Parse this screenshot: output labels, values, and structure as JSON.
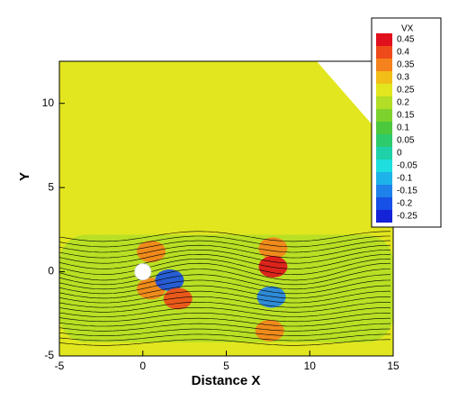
{
  "chart_data": {
    "type": "contour",
    "x_label": "Distance X",
    "y_label": "Y",
    "xlim": [
      -5,
      15
    ],
    "ylim": [
      -5,
      12.5
    ],
    "xticks": [
      -5,
      0,
      5,
      10,
      15
    ],
    "yticks": [
      -5,
      0,
      5,
      10
    ],
    "legend": {
      "title": "VX",
      "levels": [
        0.45,
        0.4,
        0.35,
        0.3,
        0.25,
        0.2,
        0.15,
        0.1,
        0.05,
        0,
        -0.05,
        -0.1,
        -0.15,
        -0.2,
        -0.25
      ],
      "colors": [
        "#e0101c",
        "#ee4a1a",
        "#f5821c",
        "#f2be18",
        "#e2e61e",
        "#b2de26",
        "#7ed22e",
        "#4cc83c",
        "#2ecb6c",
        "#1fd1a8",
        "#1edede",
        "#1eb2ea",
        "#1f82ea",
        "#1650e6",
        "#1422d8"
      ]
    },
    "background_value": 0.25,
    "wake": {
      "value": 0.2,
      "y_range": [
        -4.2,
        2.2
      ]
    },
    "spots": [
      {
        "x": 0.5,
        "y": 1.2,
        "value": 0.35
      },
      {
        "x": 0.5,
        "y": -1.0,
        "value": 0.35
      },
      {
        "x": 1.6,
        "y": -0.5,
        "value": -0.2
      },
      {
        "x": 2.1,
        "y": -1.6,
        "value": 0.4
      },
      {
        "x": 7.8,
        "y": 1.4,
        "value": 0.35
      },
      {
        "x": 7.8,
        "y": 0.3,
        "value": 0.45
      },
      {
        "x": 7.7,
        "y": -1.5,
        "value": -0.15
      },
      {
        "x": 7.6,
        "y": -3.5,
        "value": 0.35
      }
    ]
  }
}
